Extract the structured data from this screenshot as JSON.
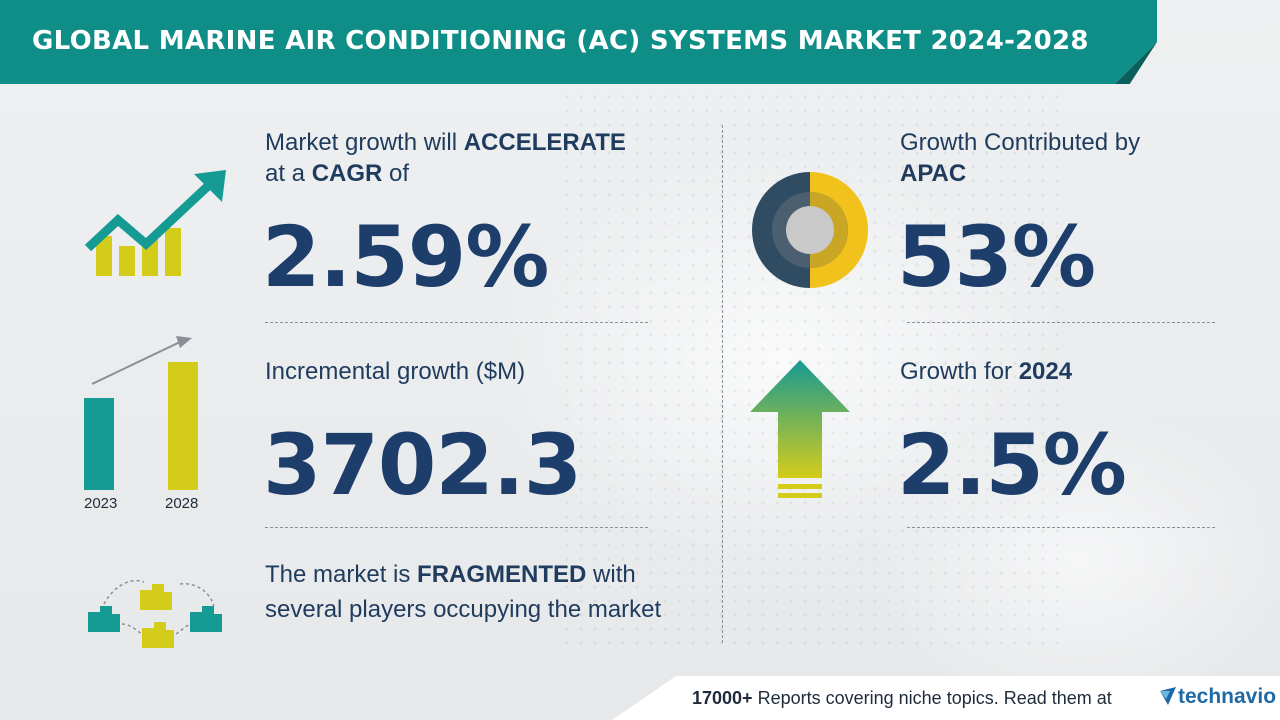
{
  "header": {
    "title": "GLOBAL MARINE AIR CONDITIONING (AC) SYSTEMS MARKET 2024-2028"
  },
  "cagr": {
    "caption_prefix": "Market growth will",
    "caption_strong": "ACCELERATE",
    "caption_line2_prefix": "at a",
    "caption_line2_strong": "CAGR",
    "caption_line2_suffix": "of",
    "value": "2.59%"
  },
  "incremental": {
    "caption": "Incremental growth ($M)",
    "value": "3702.3",
    "year_start": "2023",
    "year_end": "2028"
  },
  "market": {
    "caption_prefix": "The market is",
    "caption_strong": "FRAGMENTED",
    "caption_rest": "with several players occupying the market"
  },
  "region": {
    "caption": "Growth Contributed by",
    "region_name": "APAC",
    "value": "53%"
  },
  "yoy": {
    "caption_prefix": "Growth for",
    "caption_year": "2024",
    "value": "2.5%"
  },
  "footer": {
    "count": "17000+",
    "text": "Reports covering niche topics. Read them at",
    "brand": "technavio"
  },
  "colors": {
    "header": "#0e8e87",
    "accent_yellow": "#d4cc1a",
    "teal": "#169a94",
    "navy_text": "#1d3d6b",
    "donut_dark": "#2f4c63",
    "donut_yellow": "#f1c21b"
  },
  "icons": {
    "cagr": "rising-chart-icon",
    "incremental": "bar-growth-icon",
    "fragmented": "buildings-network-icon",
    "region": "donut-chart-icon",
    "yoy": "up-arrow-icon"
  }
}
